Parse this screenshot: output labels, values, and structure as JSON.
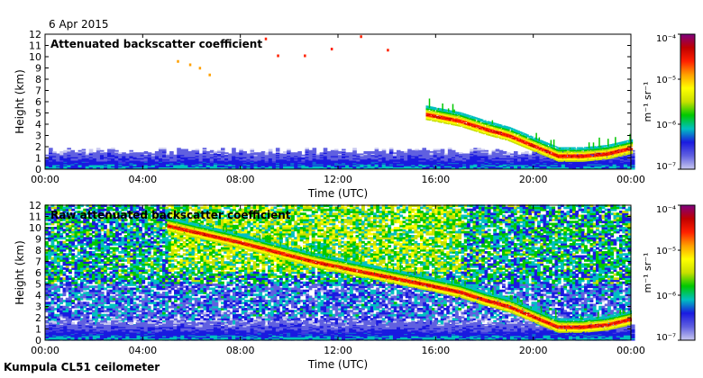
{
  "date": "6 Apr 2015",
  "site": "Kumpula CL51 ceilometer",
  "colors": {
    "scale": [
      "#ffffff",
      "#c8c8f0",
      "#6060e0",
      "#1a1ae0",
      "#00c0c0",
      "#00c800",
      "#c8e000",
      "#ffff00",
      "#ffa000",
      "#ff2000",
      "#c00000",
      "#800080"
    ]
  },
  "chart_data": [
    {
      "type": "heatmap",
      "title": "Attenuated backscatter coefficient",
      "xlabel": "Time (UTC)",
      "ylabel": "Height (km)",
      "x_ticks": [
        "00:00",
        "04:00",
        "08:00",
        "12:00",
        "16:00",
        "20:00",
        "00:00"
      ],
      "y_ticks": [
        "0",
        "1",
        "2",
        "3",
        "4",
        "5",
        "6",
        "7",
        "8",
        "9",
        "10",
        "11",
        "12"
      ],
      "xlim_hours": [
        0,
        24
      ],
      "ylim": [
        0,
        12
      ],
      "colorbar": {
        "label": "m⁻¹ sr⁻¹",
        "ticks": [
          "10⁻⁷",
          "10⁻⁶",
          "10⁻⁵",
          "10⁻⁴"
        ],
        "log_scale": true,
        "range": [
          1e-07,
          0.0001
        ]
      },
      "features": [
        {
          "kind": "boundary_layer",
          "time_hours": [
            0,
            24
          ],
          "top_km": 1.7
        },
        {
          "kind": "cloud_layer",
          "points": [
            [
              15.6,
              4.7
            ],
            [
              17,
              4.1
            ],
            [
              18,
              3.4
            ],
            [
              19,
              2.8
            ],
            [
              20,
              1.9
            ],
            [
              21,
              1.0
            ],
            [
              22,
              1.0
            ],
            [
              23,
              1.2
            ],
            [
              24,
              1.7
            ]
          ]
        },
        {
          "kind": "sparse_returns",
          "points": [
            [
              5.4,
              9.7
            ],
            [
              5.9,
              9.4
            ],
            [
              6.3,
              9.1
            ],
            [
              6.7,
              8.5
            ],
            [
              9.0,
              11.7
            ],
            [
              9.5,
              10.2
            ],
            [
              10.6,
              10.2
            ],
            [
              11.7,
              10.8
            ],
            [
              12.9,
              11.9
            ],
            [
              14.0,
              10.7
            ]
          ]
        }
      ]
    },
    {
      "type": "heatmap",
      "title": "Raw attenuated backscatter coefficient",
      "xlabel": "Time (UTC)",
      "ylabel": "Height (km)",
      "x_ticks": [
        "00:00",
        "04:00",
        "08:00",
        "12:00",
        "16:00",
        "20:00",
        "00:00"
      ],
      "y_ticks": [
        "0",
        "1",
        "2",
        "3",
        "4",
        "5",
        "6",
        "7",
        "8",
        "9",
        "10",
        "11",
        "12"
      ],
      "xlim_hours": [
        0,
        24
      ],
      "ylim": [
        0,
        12
      ],
      "colorbar": {
        "label": "m⁻¹ sr⁻¹",
        "ticks": [
          "10⁻⁷",
          "10⁻⁶",
          "10⁻⁵",
          "10⁻⁴"
        ],
        "log_scale": true,
        "range": [
          1e-07,
          0.0001
        ]
      },
      "features": [
        {
          "kind": "boundary_layer",
          "time_hours": [
            0,
            24
          ],
          "top_km": 1.7
        },
        {
          "kind": "cloud_layer",
          "points": [
            [
              5.0,
              10.0
            ],
            [
              8.0,
              8.5
            ],
            [
              11.0,
              6.8
            ],
            [
              13.0,
              5.9
            ],
            [
              15.5,
              4.8
            ],
            [
              17,
              4.1
            ],
            [
              18,
              3.4
            ],
            [
              19,
              2.8
            ],
            [
              20,
              1.9
            ],
            [
              21,
              1.0
            ],
            [
              22,
              1.0
            ],
            [
              23,
              1.2
            ],
            [
              24,
              1.7
            ]
          ]
        },
        {
          "kind": "noise_region",
          "time_hours": [
            5,
            17
          ],
          "heights_km": [
            6,
            12
          ]
        }
      ]
    }
  ]
}
